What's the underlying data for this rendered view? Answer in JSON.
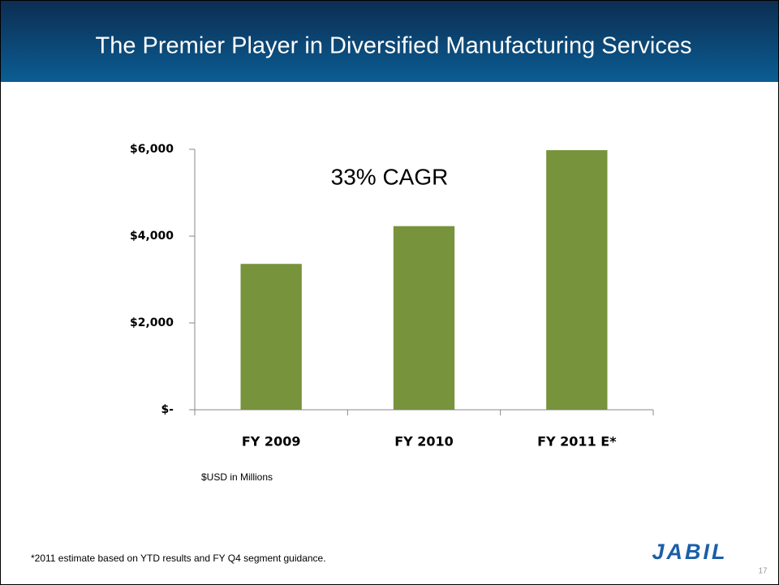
{
  "slide": {
    "title": "The Premier Player in Diversified Manufacturing Services",
    "footnote": "*2011 estimate based on YTD results and FY Q4 segment guidance.",
    "logo": "JABIL",
    "page_number": "17"
  },
  "chart_data": {
    "type": "bar",
    "annotation": "33% CAGR",
    "note": "$USD in Millions",
    "categories": [
      "FY 2009",
      "FY 2010",
      "FY 2011 E*"
    ],
    "values": [
      3360,
      4230,
      5980
    ],
    "color": "#77933c",
    "ylim": [
      0,
      6000
    ],
    "yticks": [
      {
        "value": 0,
        "label": "$-"
      },
      {
        "value": 2000,
        "label": "$2,000"
      },
      {
        "value": 4000,
        "label": "$4,000"
      },
      {
        "value": 6000,
        "label": "$6,000"
      }
    ],
    "grid": false
  }
}
